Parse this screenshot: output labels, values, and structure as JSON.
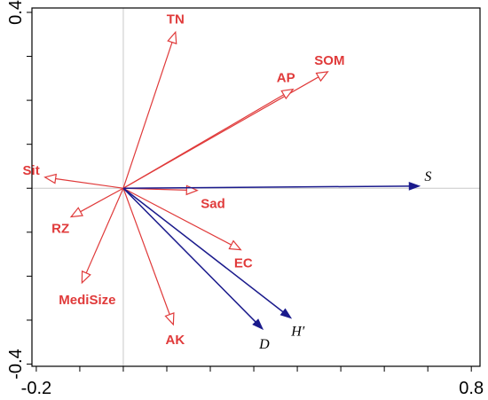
{
  "chart_data": {
    "type": "scatter",
    "title": "",
    "xlabel": "",
    "ylabel": "",
    "xlim": [
      -0.21,
      0.82
    ],
    "ylim": [
      -0.405,
      0.41
    ],
    "x_tick_labels": [
      "-0.2",
      "0.8"
    ],
    "y_tick_labels": [
      "0.4",
      "-0.4"
    ],
    "grid": false,
    "colors": {
      "environment": "#e03a3a",
      "species": "#1a1a8c",
      "origin_lines": "#c8c8c8"
    },
    "series": [
      {
        "name": "environment",
        "marker": "open-triangle",
        "points": [
          {
            "label": "TN",
            "x": 0.12,
            "y": 0.355
          },
          {
            "label": "SOM",
            "x": 0.47,
            "y": 0.265
          },
          {
            "label": "AP",
            "x": 0.39,
            "y": 0.225
          },
          {
            "label": "Sit",
            "x": -0.18,
            "y": 0.025
          },
          {
            "label": "Sad",
            "x": 0.17,
            "y": -0.005
          },
          {
            "label": "RZ",
            "x": -0.12,
            "y": -0.065
          },
          {
            "label": "EC",
            "x": 0.27,
            "y": -0.14
          },
          {
            "label": "MediSize",
            "x": -0.095,
            "y": -0.215
          },
          {
            "label": "AK",
            "x": 0.115,
            "y": -0.31
          }
        ]
      },
      {
        "name": "species",
        "marker": "filled-arrow",
        "points": [
          {
            "label": "S",
            "x": 0.68,
            "y": 0.005
          },
          {
            "label": "D",
            "x": 0.32,
            "y": -0.32
          },
          {
            "label": "H′",
            "x": 0.385,
            "y": -0.295
          }
        ]
      }
    ]
  }
}
